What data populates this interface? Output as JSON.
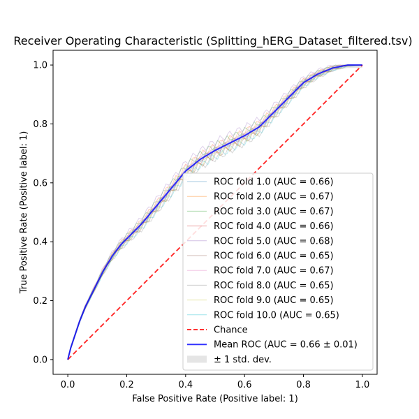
{
  "chart_data": {
    "type": "line",
    "title": "Receiver Operating Characteristic (Splitting_hERG_Dataset_filtered.tsv)",
    "xlabel": "False Positive Rate (Positive label: 1)",
    "ylabel": "True Positive Rate (Positive label: 1)",
    "xlim": [
      -0.05,
      1.05
    ],
    "ylim": [
      -0.05,
      1.05
    ],
    "xticks": [
      "0.0",
      "0.2",
      "0.4",
      "0.6",
      "0.8",
      "1.0"
    ],
    "yticks": [
      "0.0",
      "0.2",
      "0.4",
      "0.6",
      "0.8",
      "1.0"
    ],
    "grid": false,
    "legend_position": "lower-right",
    "mean_curve": {
      "name": "Mean ROC (AUC = 0.66 ± 0.01)",
      "color": "#0000ff",
      "x": [
        0.0,
        0.01,
        0.02,
        0.04,
        0.06,
        0.08,
        0.1,
        0.12,
        0.15,
        0.18,
        0.2,
        0.25,
        0.3,
        0.35,
        0.4,
        0.45,
        0.5,
        0.55,
        0.6,
        0.65,
        0.7,
        0.75,
        0.8,
        0.85,
        0.9,
        0.95,
        1.0
      ],
      "y": [
        0.0,
        0.04,
        0.07,
        0.13,
        0.18,
        0.22,
        0.26,
        0.3,
        0.35,
        0.39,
        0.41,
        0.46,
        0.52,
        0.58,
        0.64,
        0.68,
        0.71,
        0.735,
        0.76,
        0.79,
        0.84,
        0.89,
        0.94,
        0.97,
        0.99,
        1.0,
        1.0
      ]
    },
    "std_band": {
      "name": "± 1 std. dev.",
      "color": "#cccccc",
      "half_width": 0.01
    },
    "chance": {
      "name": "Chance",
      "color": "#ff0000",
      "x": [
        0,
        1
      ],
      "y": [
        0,
        1
      ]
    },
    "folds": [
      {
        "name": "ROC fold 1.0 (AUC = 0.66)",
        "color": "#1f77b4",
        "offset": 0.0
      },
      {
        "name": "ROC fold 2.0 (AUC = 0.67)",
        "color": "#ff7f0e",
        "offset": 0.01
      },
      {
        "name": "ROC fold 3.0 (AUC = 0.67)",
        "color": "#2ca02c",
        "offset": 0.012
      },
      {
        "name": "ROC fold 4.0 (AUC = 0.66)",
        "color": "#d62728",
        "offset": -0.004
      },
      {
        "name": "ROC fold 5.0 (AUC = 0.68)",
        "color": "#9467bd",
        "offset": 0.02
      },
      {
        "name": "ROC fold 6.0 (AUC = 0.65)",
        "color": "#8c564b",
        "offset": -0.012
      },
      {
        "name": "ROC fold 7.0 (AUC = 0.67)",
        "color": "#e377c2",
        "offset": 0.008
      },
      {
        "name": "ROC fold 8.0 (AUC = 0.65)",
        "color": "#7f7f7f",
        "offset": -0.018
      },
      {
        "name": "ROC fold 9.0 (AUC = 0.65)",
        "color": "#bcbd22",
        "offset": -0.01
      },
      {
        "name": "ROC fold 10.0 (AUC = 0.65)",
        "color": "#17becf",
        "offset": -0.015
      }
    ]
  }
}
